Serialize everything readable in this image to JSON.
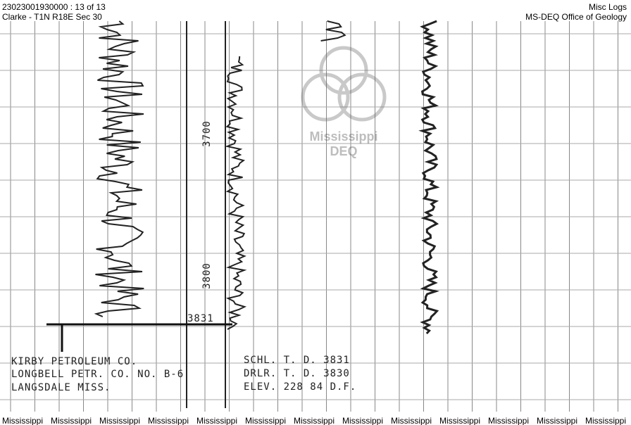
{
  "header": {
    "left": [
      "23023001930000 : 13 of 13",
      "Clarke - T1N R18E Sec 30"
    ],
    "right": [
      "Misc Logs",
      "MS-DEQ Office of Geology"
    ]
  },
  "depth_labels": [
    "3700",
    "3800"
  ],
  "total_depth_label": "3831",
  "watermark": {
    "line1": "Mississippi",
    "line2": "DEQ"
  },
  "well_info": [
    "KIRBY PETROLEUM CO.",
    "LONGBELL PETR. CO. NO. B-6",
    "LANGSDALE MISS."
  ],
  "depth_info": [
    "SCHL. T. D. 3831",
    "DRLR. T. D. 3830",
    "ELEV. 228 84 D.F."
  ],
  "footer": [
    "Mississippi",
    "Mississippi",
    "Mississippi",
    "Mississippi",
    "Mississippi",
    "Mississippi",
    "Mississippi",
    "Mississippi",
    "Mississippi",
    "Mississippi",
    "Mississippi",
    "Mississippi",
    "Mississippi"
  ]
}
